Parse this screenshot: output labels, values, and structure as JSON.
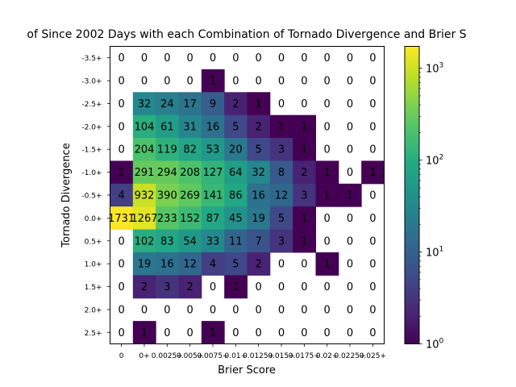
{
  "chart_data": {
    "type": "heatmap",
    "title": "of Since 2002 Days with each Combination of Tornado Divergence and Brier S",
    "xlabel": "Brier Score",
    "ylabel": "Tornado Divergence",
    "x_categories": [
      "0",
      "0+",
      "0.0025+",
      "0.005+",
      "0.0075+",
      "0.01+",
      "0.0125+",
      "0.015+",
      "0.0175+",
      "0.02+",
      "0.0225+",
      "0.025+"
    ],
    "y_categories": [
      "-3.5+",
      "-3.0+",
      "-2.5+",
      "-2.0+",
      "-1.5+",
      "-1.0+",
      "-0.5+",
      "0.0+",
      "0.5+",
      "1.0+",
      "1.5+",
      "2.0+",
      "2.5+"
    ],
    "values": [
      [
        0,
        0,
        0,
        0,
        0,
        0,
        0,
        0,
        0,
        0,
        0,
        0
      ],
      [
        0,
        0,
        0,
        0,
        1,
        0,
        0,
        0,
        0,
        0,
        0,
        0
      ],
      [
        0,
        32,
        24,
        17,
        9,
        2,
        1,
        0,
        0,
        0,
        0,
        0
      ],
      [
        0,
        104,
        61,
        31,
        16,
        5,
        2,
        1,
        1,
        0,
        0,
        0
      ],
      [
        0,
        204,
        119,
        82,
        53,
        20,
        5,
        3,
        1,
        0,
        0,
        0
      ],
      [
        1,
        291,
        294,
        208,
        127,
        64,
        32,
        8,
        2,
        1,
        0,
        1
      ],
      [
        4,
        932,
        390,
        269,
        141,
        86,
        16,
        12,
        3,
        1,
        1,
        0
      ],
      [
        1731,
        1267,
        233,
        152,
        87,
        45,
        19,
        5,
        1,
        0,
        0,
        0
      ],
      [
        0,
        102,
        83,
        54,
        33,
        11,
        7,
        3,
        1,
        0,
        0,
        0
      ],
      [
        0,
        19,
        16,
        12,
        4,
        5,
        2,
        0,
        0,
        1,
        0,
        0
      ],
      [
        0,
        2,
        3,
        2,
        0,
        1,
        0,
        0,
        0,
        0,
        0,
        0
      ],
      [
        0,
        0,
        0,
        0,
        0,
        0,
        0,
        0,
        0,
        0,
        0,
        0
      ],
      [
        0,
        1,
        0,
        0,
        1,
        0,
        0,
        0,
        0,
        0,
        0,
        0
      ]
    ],
    "colorbar": {
      "scale": "log",
      "colormap": "viridis",
      "range": [
        1,
        1731
      ],
      "tick_labels": [
        {
          "base": "10",
          "exp": "0",
          "value": 1
        },
        {
          "base": "10",
          "exp": "1",
          "value": 10
        },
        {
          "base": "10",
          "exp": "2",
          "value": 100
        },
        {
          "base": "10",
          "exp": "3",
          "value": 1000
        }
      ]
    },
    "zero_cells": "blank (white)",
    "grid": false
  }
}
